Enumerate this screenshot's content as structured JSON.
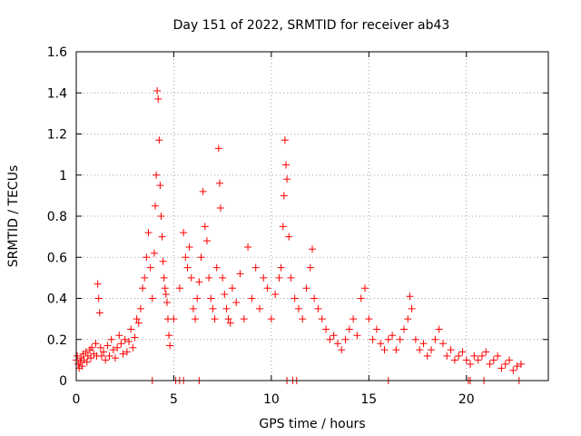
{
  "chart_data": {
    "type": "scatter",
    "title": "Day 151 of 2022, SRMTID for receiver ab43",
    "xlabel": "GPS time / hours",
    "ylabel": "SRMTID / TECUs",
    "xlim": [
      0,
      24.2
    ],
    "ylim": [
      0,
      1.6
    ],
    "x_ticks": [
      0,
      5,
      10,
      15,
      20
    ],
    "x_tick_labels": [
      "0",
      "5",
      "10",
      "15",
      "20"
    ],
    "y_ticks": [
      0,
      0.2,
      0.4,
      0.6,
      0.8,
      1.0,
      1.2,
      1.4,
      1.6
    ],
    "y_tick_labels": [
      "0",
      "0.2",
      "0.4",
      "0.6",
      "0.8",
      "1",
      "1.2",
      "1.4",
      "1.6"
    ],
    "grid": true,
    "marker": "+",
    "color": "#ff0000",
    "series": [
      {
        "name": "SRMTID",
        "x": [
          0.0,
          0.05,
          0.1,
          0.15,
          0.2,
          0.25,
          0.3,
          0.35,
          0.4,
          0.5,
          0.55,
          0.6,
          0.7,
          0.75,
          0.8,
          0.9,
          1.0,
          1.05,
          1.1,
          1.15,
          1.2,
          1.25,
          1.3,
          1.4,
          1.5,
          1.6,
          1.7,
          1.8,
          1.9,
          2.0,
          2.1,
          2.2,
          2.3,
          2.4,
          2.5,
          2.6,
          2.7,
          2.8,
          2.9,
          3.0,
          3.1,
          3.2,
          3.3,
          3.4,
          3.5,
          3.6,
          3.7,
          3.8,
          3.9,
          4.0,
          4.05,
          4.1,
          4.15,
          4.2,
          4.25,
          4.3,
          4.35,
          4.4,
          4.45,
          4.5,
          4.55,
          4.6,
          4.65,
          4.7,
          4.75,
          4.8,
          5.0,
          5.3,
          5.5,
          5.6,
          5.7,
          5.8,
          5.9,
          6.0,
          6.1,
          6.2,
          6.3,
          6.4,
          6.5,
          6.6,
          6.7,
          6.8,
          6.9,
          7.0,
          7.1,
          7.2,
          7.3,
          7.35,
          7.4,
          7.5,
          7.6,
          7.7,
          7.8,
          7.9,
          8.0,
          8.2,
          8.4,
          8.6,
          8.8,
          9.0,
          9.2,
          9.4,
          9.6,
          9.8,
          10.0,
          10.2,
          10.4,
          10.5,
          10.6,
          10.65,
          10.7,
          10.75,
          10.8,
          10.9,
          11.0,
          11.2,
          11.4,
          11.6,
          11.8,
          12.0,
          12.1,
          12.2,
          12.4,
          12.6,
          12.8,
          13.0,
          13.2,
          13.4,
          13.6,
          13.8,
          14.0,
          14.2,
          14.4,
          14.6,
          14.8,
          15.0,
          15.2,
          15.4,
          15.6,
          15.8,
          16.0,
          16.2,
          16.4,
          16.6,
          16.8,
          17.0,
          17.1,
          17.2,
          17.4,
          17.6,
          17.8,
          18.0,
          18.2,
          18.4,
          18.6,
          18.8,
          19.0,
          19.2,
          19.4,
          19.6,
          19.8,
          20.0,
          20.2,
          20.4,
          20.6,
          20.8,
          21.0,
          21.2,
          21.4,
          21.6,
          21.8,
          22.0,
          22.2,
          22.4,
          22.6,
          22.8,
          3.9,
          5.1,
          5.3,
          5.5,
          6.3,
          10.8,
          11.1,
          11.3,
          16.0,
          20.1,
          20.2,
          20.9,
          22.7
        ],
        "y": [
          0.1,
          0.12,
          0.08,
          0.06,
          0.09,
          0.11,
          0.07,
          0.13,
          0.1,
          0.14,
          0.09,
          0.12,
          0.15,
          0.11,
          0.16,
          0.13,
          0.18,
          0.12,
          0.47,
          0.4,
          0.33,
          0.16,
          0.12,
          0.14,
          0.1,
          0.17,
          0.12,
          0.2,
          0.15,
          0.11,
          0.16,
          0.22,
          0.18,
          0.13,
          0.2,
          0.14,
          0.19,
          0.25,
          0.16,
          0.21,
          0.3,
          0.28,
          0.35,
          0.45,
          0.5,
          0.6,
          0.72,
          0.55,
          0.4,
          0.62,
          0.85,
          1.0,
          1.41,
          1.37,
          1.17,
          0.95,
          0.8,
          0.7,
          0.58,
          0.5,
          0.45,
          0.42,
          0.38,
          0.3,
          0.22,
          0.17,
          0.3,
          0.45,
          0.72,
          0.6,
          0.55,
          0.65,
          0.5,
          0.35,
          0.3,
          0.4,
          0.48,
          0.6,
          0.92,
          0.75,
          0.68,
          0.5,
          0.4,
          0.35,
          0.3,
          0.55,
          1.13,
          0.96,
          0.84,
          0.5,
          0.42,
          0.35,
          0.3,
          0.28,
          0.45,
          0.38,
          0.52,
          0.3,
          0.65,
          0.4,
          0.55,
          0.35,
          0.5,
          0.45,
          0.3,
          0.42,
          0.5,
          0.55,
          0.75,
          0.9,
          1.17,
          1.05,
          0.98,
          0.7,
          0.5,
          0.4,
          0.35,
          0.3,
          0.45,
          0.55,
          0.64,
          0.4,
          0.35,
          0.3,
          0.25,
          0.2,
          0.22,
          0.18,
          0.15,
          0.2,
          0.25,
          0.3,
          0.22,
          0.4,
          0.45,
          0.3,
          0.2,
          0.25,
          0.18,
          0.15,
          0.2,
          0.22,
          0.15,
          0.2,
          0.25,
          0.3,
          0.41,
          0.35,
          0.2,
          0.15,
          0.18,
          0.12,
          0.15,
          0.2,
          0.25,
          0.18,
          0.12,
          0.15,
          0.1,
          0.12,
          0.14,
          0.1,
          0.08,
          0.12,
          0.1,
          0.12,
          0.14,
          0.08,
          0.1,
          0.12,
          0.06,
          0.08,
          0.1,
          0.05,
          0.07,
          0.08,
          0.0,
          0.0,
          0.0,
          0.0,
          0.0,
          0.0,
          0.0,
          0.0,
          0.0,
          0.0,
          0.0,
          0.0,
          0.0
        ]
      }
    ]
  }
}
